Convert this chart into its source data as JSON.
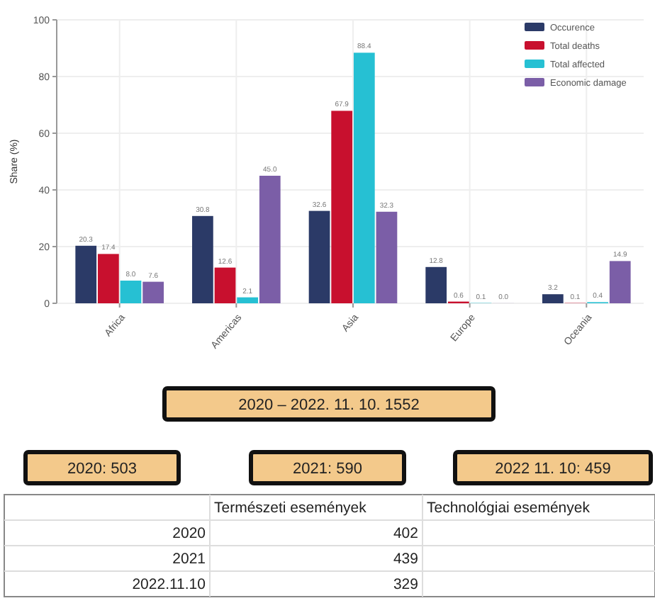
{
  "chart_data": [
    {
      "type": "bar",
      "ylabel": "Share (%)",
      "categories": [
        "Africa",
        "Americas",
        "Asia",
        "Europe",
        "Oceania"
      ],
      "series": [
        {
          "name": "Occurence",
          "color": "#2b3a67",
          "values": [
            20.3,
            30.8,
            32.6,
            12.8,
            3.2
          ],
          "value_labels": [
            "20.3",
            "30.8",
            "32.6",
            "12.8",
            "3.2"
          ]
        },
        {
          "name": "Total deaths",
          "color": "#c8102e",
          "values": [
            17.4,
            12.6,
            67.9,
            0.6,
            0.1
          ],
          "value_labels": [
            "17.4",
            "12.6",
            "67.9",
            "0.6",
            "0.1"
          ]
        },
        {
          "name": "Total affected",
          "color": "#26c0d3",
          "values": [
            8,
            2.1,
            88.4,
            0.1,
            0.4
          ],
          "value_labels": [
            "8.0",
            "2.1",
            "88.4",
            "0.1",
            "0.4"
          ]
        },
        {
          "name": "Economic damage",
          "color": "#7b5ea7",
          "values": [
            7.6,
            45,
            32.3,
            0.02,
            14.9
          ],
          "value_labels": [
            "7.6",
            "45.0",
            "32.3",
            "0.0",
            "14.9"
          ]
        }
      ],
      "ylim": [
        0,
        100
      ],
      "yticks": [
        0,
        20,
        40,
        60,
        80,
        100
      ],
      "grid": true,
      "legend": "top right"
    },
    {
      "type": "other",
      "annotations": [
        "2020 – 2022. 11. 10. 1552",
        "2020: 503",
        "2021: 590",
        "2022 11. 10: 459"
      ]
    },
    {
      "type": "other",
      "categories": [
        "2020",
        "2021",
        "2022.11.10"
      ],
      "series": [
        {
          "name": "Természeti események",
          "values": [
            402,
            439,
            329
          ],
          "value_labels": [
            "402",
            "439",
            "329"
          ]
        },
        {
          "name": "Technológiai események",
          "values": [
            null,
            null,
            null
          ]
        }
      ]
    }
  ]
}
